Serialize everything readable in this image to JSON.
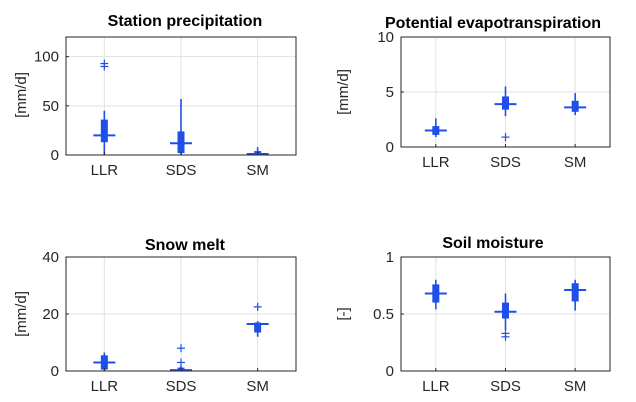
{
  "colors": {
    "box": "#1f4fe8",
    "axis": "#262626",
    "grid": "#e1e1e1"
  },
  "chart_data": [
    {
      "type": "box",
      "title": "Station precipitation",
      "ylabel": "[mm/d]",
      "ylim": [
        0,
        120
      ],
      "yticks": [
        "0",
        "50",
        "100"
      ],
      "ytick_values": [
        0,
        50,
        100
      ],
      "grid": true,
      "categories": [
        "LLR",
        "SDS",
        "SM"
      ],
      "boxes": [
        {
          "category": "LLR",
          "whisker_low": 0,
          "q1": 13,
          "median": 20,
          "q3": 36,
          "whisker_high": 45,
          "outliers": [
            90,
            93
          ]
        },
        {
          "category": "SDS",
          "whisker_low": 0,
          "q1": 2,
          "median": 12,
          "q3": 24,
          "whisker_high": 57,
          "outliers": []
        },
        {
          "category": "SM",
          "whisker_low": 0,
          "q1": 0,
          "median": 1,
          "q3": 4,
          "whisker_high": 8,
          "outliers": []
        }
      ]
    },
    {
      "type": "box",
      "title": "Potential evapotranspiration",
      "ylabel": "[mm/d]",
      "ylim": [
        0,
        10
      ],
      "yticks": [
        "0",
        "5",
        "10"
      ],
      "ytick_values": [
        0,
        5,
        10
      ],
      "grid": true,
      "categories": [
        "LLR",
        "SDS",
        "SM"
      ],
      "boxes": [
        {
          "category": "LLR",
          "whisker_low": 0.9,
          "q1": 1.1,
          "median": 1.5,
          "q3": 1.9,
          "whisker_high": 2.6,
          "outliers": []
        },
        {
          "category": "SDS",
          "whisker_low": 2.8,
          "q1": 3.4,
          "median": 3.9,
          "q3": 4.6,
          "whisker_high": 5.5,
          "outliers": [
            0.9
          ]
        },
        {
          "category": "SM",
          "whisker_low": 2.9,
          "q1": 3.2,
          "median": 3.6,
          "q3": 4.2,
          "whisker_high": 4.9,
          "outliers": []
        }
      ]
    },
    {
      "type": "box",
      "title": "Snow melt",
      "ylabel": "[mm/d]",
      "ylim": [
        0,
        40
      ],
      "yticks": [
        "0",
        "20",
        "40"
      ],
      "ytick_values": [
        0,
        20,
        40
      ],
      "grid": true,
      "categories": [
        "LLR",
        "SDS",
        "SM"
      ],
      "boxes": [
        {
          "category": "LLR",
          "whisker_low": 0,
          "q1": 0.5,
          "median": 3,
          "q3": 5.5,
          "whisker_high": 6.5,
          "outliers": []
        },
        {
          "category": "SDS",
          "whisker_low": 0,
          "q1": 0,
          "median": 0.3,
          "q3": 1.2,
          "whisker_high": 1.8,
          "outliers": [
            3,
            8
          ]
        },
        {
          "category": "SM",
          "whisker_low": 12,
          "q1": 13.5,
          "median": 16.5,
          "q3": 17,
          "whisker_high": 17.5,
          "outliers": [
            22.5
          ]
        }
      ]
    },
    {
      "type": "box",
      "title": "Soil moisture",
      "ylabel": "[-]",
      "ylim": [
        0,
        1
      ],
      "yticks": [
        "0",
        "0.5",
        "1"
      ],
      "ytick_values": [
        0,
        0.5,
        1
      ],
      "grid": true,
      "categories": [
        "LLR",
        "SDS",
        "SM"
      ],
      "boxes": [
        {
          "category": "LLR",
          "whisker_low": 0.54,
          "q1": 0.6,
          "median": 0.68,
          "q3": 0.76,
          "whisker_high": 0.8,
          "outliers": []
        },
        {
          "category": "SDS",
          "whisker_low": 0.36,
          "q1": 0.46,
          "median": 0.52,
          "q3": 0.6,
          "whisker_high": 0.68,
          "outliers": [
            0.3,
            0.33
          ]
        },
        {
          "category": "SM",
          "whisker_low": 0.53,
          "q1": 0.61,
          "median": 0.71,
          "q3": 0.77,
          "whisker_high": 0.8,
          "outliers": []
        }
      ]
    }
  ]
}
